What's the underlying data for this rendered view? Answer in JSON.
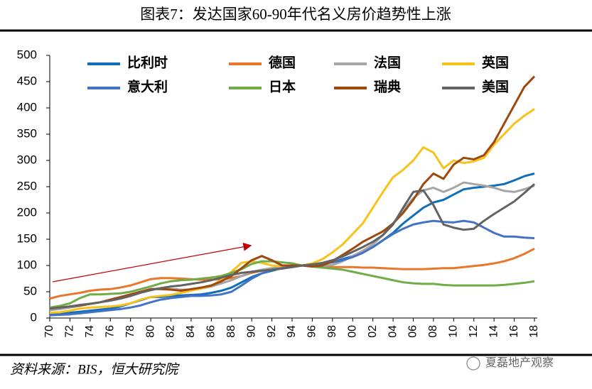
{
  "chart_data": {
    "type": "line",
    "title": "图表7：发达国家60-90年代名义房价趋势性上涨",
    "source": "资料来源：BIS，恒大研究院",
    "watermark": "夏磊地产观察",
    "categories": [
      "70",
      null,
      "72",
      null,
      "74",
      null,
      "76",
      null,
      "78",
      null,
      "80",
      null,
      "82",
      null,
      "84",
      null,
      "86",
      null,
      "88",
      null,
      "90",
      null,
      "92",
      null,
      "94",
      null,
      "96",
      null,
      "98",
      null,
      "00",
      null,
      "02",
      null,
      "04",
      null,
      "06",
      null,
      "08",
      null,
      "10",
      null,
      "12",
      null,
      "14",
      null,
      "16",
      null,
      "18"
    ],
    "ylim": [
      0,
      500
    ],
    "yticks": [
      0,
      50,
      100,
      150,
      200,
      250,
      300,
      350,
      400,
      450,
      500
    ],
    "grid": false,
    "legend": "top",
    "series": [
      {
        "name": "比利时",
        "color": "#0f6fba",
        "values": [
          8,
          9,
          10,
          12,
          14,
          16,
          18,
          22,
          28,
          34,
          40,
          40,
          42,
          43,
          44,
          45,
          48,
          52,
          58,
          68,
          78,
          85,
          90,
          95,
          98,
          100,
          101,
          103,
          106,
          112,
          118,
          125,
          135,
          148,
          162,
          180,
          195,
          210,
          220,
          225,
          235,
          245,
          248,
          250,
          252,
          255,
          262,
          270,
          275
        ]
      },
      {
        "name": "德国",
        "color": "#e8762b",
        "values": [
          37,
          42,
          45,
          48,
          52,
          54,
          55,
          58,
          62,
          68,
          74,
          76,
          76,
          75,
          74,
          73,
          73,
          74,
          76,
          80,
          86,
          90,
          94,
          97,
          99,
          100,
          99,
          98,
          97,
          97,
          97,
          96,
          96,
          95,
          94,
          93,
          93,
          93,
          94,
          95,
          95,
          97,
          99,
          101,
          104,
          108,
          114,
          122,
          132
        ]
      },
      {
        "name": "法国",
        "color": "#a5a5a5",
        "values": [
          15,
          17,
          20,
          23,
          27,
          30,
          34,
          38,
          44,
          50,
          55,
          56,
          55,
          54,
          54,
          56,
          60,
          66,
          72,
          80,
          88,
          92,
          95,
          96,
          97,
          100,
          99,
          99,
          101,
          108,
          118,
          128,
          140,
          158,
          180,
          205,
          228,
          243,
          248,
          240,
          248,
          258,
          255,
          252,
          248,
          242,
          240,
          245,
          252
        ]
      },
      {
        "name": "英国",
        "color": "#f7c21a",
        "values": [
          10,
          11,
          14,
          18,
          20,
          21,
          22,
          24,
          28,
          35,
          40,
          42,
          44,
          48,
          52,
          56,
          62,
          72,
          88,
          105,
          108,
          105,
          100,
          98,
          98,
          100,
          104,
          112,
          125,
          140,
          160,
          180,
          210,
          240,
          268,
          282,
          300,
          325,
          315,
          285,
          300,
          295,
          298,
          305,
          330,
          350,
          370,
          385,
          398
        ]
      },
      {
        "name": "意大利",
        "color": "#4472c4",
        "values": [
          5,
          6,
          7,
          9,
          11,
          13,
          15,
          17,
          20,
          24,
          30,
          35,
          38,
          40,
          42,
          42,
          43,
          45,
          50,
          62,
          75,
          85,
          92,
          95,
          97,
          100,
          102,
          104,
          106,
          110,
          116,
          124,
          135,
          148,
          160,
          170,
          178,
          182,
          185,
          183,
          182,
          185,
          182,
          172,
          162,
          155,
          155,
          153,
          152
        ]
      },
      {
        "name": "日本",
        "color": "#70ad47",
        "values": [
          20,
          23,
          28,
          38,
          45,
          45,
          46,
          47,
          50,
          55,
          60,
          66,
          70,
          72,
          73,
          75,
          77,
          80,
          86,
          93,
          103,
          108,
          108,
          106,
          104,
          100,
          98,
          96,
          94,
          92,
          88,
          84,
          80,
          76,
          72,
          68,
          66,
          65,
          65,
          63,
          62,
          62,
          62,
          62,
          62,
          63,
          65,
          67,
          70
        ]
      },
      {
        "name": "瑞典",
        "color": "#9e480e",
        "values": [
          18,
          20,
          22,
          24,
          27,
          30,
          35,
          40,
          45,
          50,
          55,
          55,
          54,
          52,
          55,
          58,
          62,
          70,
          80,
          95,
          110,
          118,
          110,
          100,
          100,
          100,
          98,
          100,
          108,
          120,
          132,
          145,
          155,
          165,
          180,
          200,
          225,
          255,
          275,
          265,
          292,
          305,
          302,
          310,
          335,
          370,
          405,
          440,
          460
        ]
      },
      {
        "name": "美国",
        "color": "#636363",
        "values": [
          18,
          20,
          22,
          25,
          27,
          30,
          33,
          37,
          42,
          48,
          53,
          57,
          60,
          62,
          65,
          68,
          72,
          77,
          82,
          86,
          88,
          90,
          92,
          94,
          97,
          100,
          102,
          105,
          110,
          117,
          126,
          135,
          145,
          158,
          178,
          210,
          240,
          243,
          215,
          178,
          172,
          168,
          170,
          185,
          198,
          210,
          222,
          238,
          255
        ]
      }
    ]
  }
}
